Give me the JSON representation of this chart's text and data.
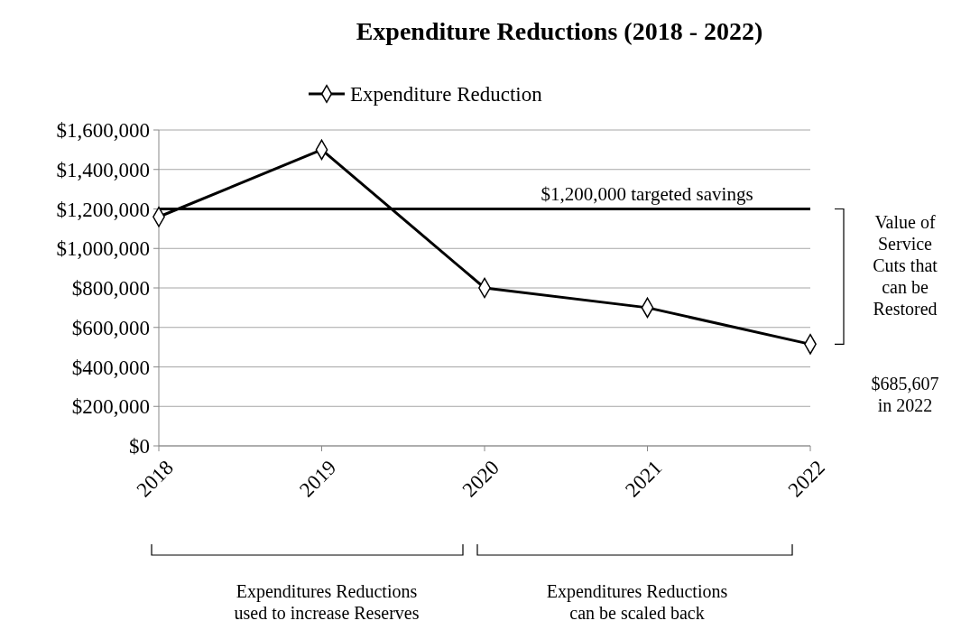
{
  "chart_data": {
    "type": "line",
    "title": "Expenditure Reductions (2018 - 2022)",
    "categories": [
      "2018",
      "2019",
      "2020",
      "2021",
      "2022"
    ],
    "series": [
      {
        "name": "Expenditure Reduction",
        "color": "#000000",
        "values": [
          1160000,
          1500000,
          800000,
          700000,
          515000
        ]
      }
    ],
    "ylim": [
      0,
      1600000
    ],
    "yticks": [
      {
        "value": 0,
        "label": "$0"
      },
      {
        "value": 200000,
        "label": "$200,000"
      },
      {
        "value": 400000,
        "label": "$400,000"
      },
      {
        "value": 600000,
        "label": "$600,000"
      },
      {
        "value": 800000,
        "label": "$800,000"
      },
      {
        "value": 1000000,
        "label": "$1,000,000"
      },
      {
        "value": 1200000,
        "label": "$1,200,000"
      },
      {
        "value": 1400000,
        "label": "$1,400,000"
      },
      {
        "value": 1600000,
        "label": "$1,600,000"
      }
    ],
    "ref_lines": [
      {
        "axis": "y",
        "value": 1200000,
        "label": "$1,200,000 targeted savings",
        "color": "#000000"
      }
    ],
    "annotations": [
      "Value of\nService\nCuts that\ncan be\nRestored",
      "$685,607\nin 2022",
      "Expenditures Reductions\nused to increase Reserves",
      "Expenditures Reductions\ncan be scaled back"
    ],
    "grid": "y",
    "legend": "top",
    "marker": "diamond",
    "line_style": "solid"
  }
}
